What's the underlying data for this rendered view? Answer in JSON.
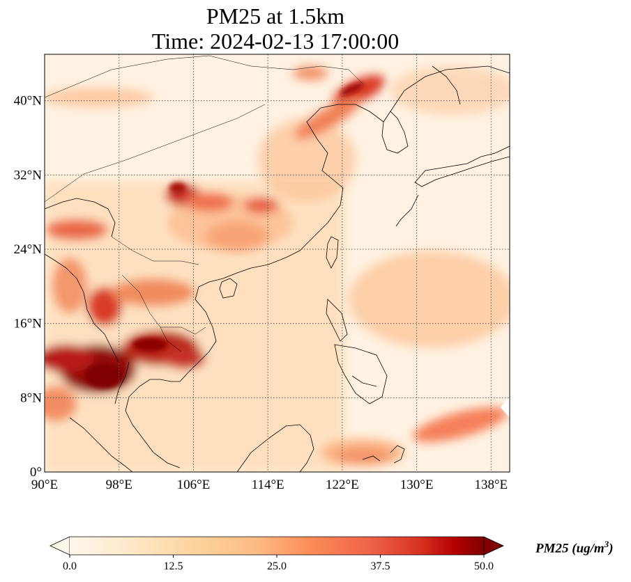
{
  "title_line1": "PM25 at 1.5km",
  "title_line2": "Time: 2024-02-13 17:00:00",
  "map": {
    "lon_range": [
      90,
      140
    ],
    "lat_range": [
      0,
      45
    ],
    "x_ticks": [
      90,
      98,
      106,
      114,
      122,
      130,
      138
    ],
    "x_tick_labels": [
      "90°E",
      "98°E",
      "106°E",
      "114°E",
      "122°E",
      "130°E",
      "138°E"
    ],
    "y_ticks": [
      0,
      8,
      16,
      24,
      32,
      40
    ],
    "y_tick_labels": [
      "0°",
      "8°N",
      "16°N",
      "24°N",
      "32°N",
      "40°N"
    ],
    "gridlines": true,
    "coastlines": true
  },
  "colorbar": {
    "colormap": "OrRd",
    "range": [
      0.0,
      50.0
    ],
    "extend": "both",
    "tick_labels": [
      "0.0",
      "12.5",
      "25.0",
      "37.5",
      "50.0"
    ],
    "label_prefix": "PM25 (ug/m",
    "label_exponent": "3",
    "label_suffix": ")"
  }
}
